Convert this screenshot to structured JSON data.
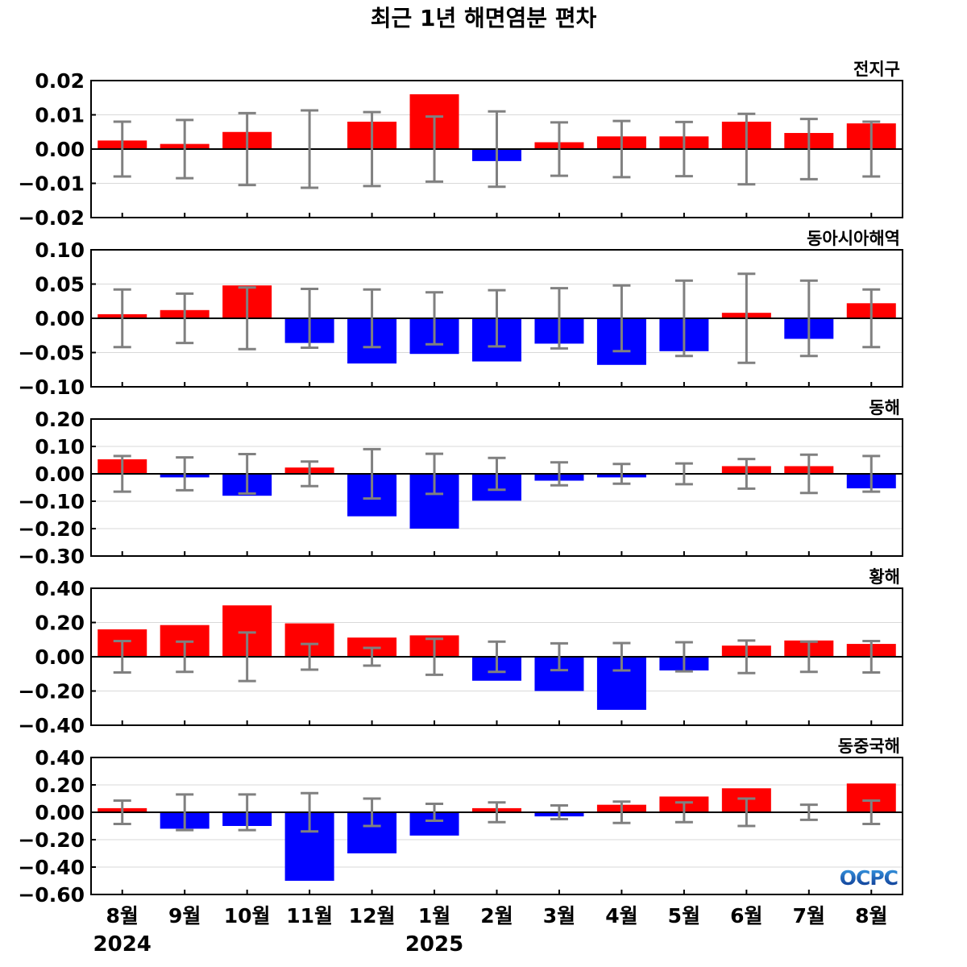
{
  "chart_data": {
    "type": "bar",
    "title": "최근 1년 해면염분 편차",
    "categories": [
      "8월",
      "9월",
      "10월",
      "11월",
      "12월",
      "1월",
      "2월",
      "3월",
      "4월",
      "5월",
      "6월",
      "7월",
      "8월"
    ],
    "year_labels": [
      {
        "label": "2024",
        "category_index": 0
      },
      {
        "label": "2025",
        "category_index": 5
      }
    ],
    "positive_color": "#ff0000",
    "negative_color": "#0000ff",
    "error_bar_color": "#808080",
    "logo": "OCPC",
    "panels": [
      {
        "name": "전지구",
        "ylim": [
          -0.02,
          0.02
        ],
        "yticks": [
          -0.02,
          -0.01,
          0.0,
          0.01,
          0.02
        ],
        "yticklabels": [
          "−0.02",
          "−0.01",
          "0.00",
          "0.01",
          "0.02"
        ],
        "values": [
          0.0025,
          0.0015,
          0.005,
          0.0002,
          0.008,
          0.016,
          -0.0035,
          0.002,
          0.0037,
          0.0037,
          0.008,
          0.0047,
          0.0075
        ],
        "error": [
          0.008,
          0.0085,
          0.0105,
          0.0113,
          0.0108,
          0.0095,
          0.011,
          0.0078,
          0.0082,
          0.0079,
          0.0103,
          0.0088,
          0.008
        ]
      },
      {
        "name": "동아시아해역",
        "ylim": [
          -0.1,
          0.1
        ],
        "yticks": [
          -0.1,
          -0.05,
          0.0,
          0.05,
          0.1
        ],
        "yticklabels": [
          "−0.10",
          "−0.05",
          "0.00",
          "0.05",
          "0.10"
        ],
        "values": [
          0.006,
          0.012,
          0.048,
          -0.036,
          -0.066,
          -0.052,
          -0.063,
          -0.037,
          -0.068,
          -0.048,
          0.008,
          -0.03,
          0.022
        ],
        "error": [
          0.042,
          0.036,
          0.045,
          0.043,
          0.042,
          0.038,
          0.041,
          0.044,
          0.048,
          0.055,
          0.065,
          0.055,
          0.042
        ]
      },
      {
        "name": "동해",
        "ylim": [
          -0.3,
          0.2
        ],
        "yticks": [
          -0.3,
          -0.2,
          -0.1,
          0.0,
          0.1,
          0.2
        ],
        "yticklabels": [
          "−0.30",
          "−0.20",
          "−0.10",
          "0.00",
          "0.10",
          "0.20"
        ],
        "values": [
          0.053,
          -0.013,
          -0.08,
          0.023,
          -0.155,
          -0.2,
          -0.098,
          -0.025,
          -0.013,
          -0.002,
          0.028,
          0.028,
          -0.053
        ],
        "error": [
          0.065,
          0.06,
          0.072,
          0.045,
          0.09,
          0.073,
          0.058,
          0.042,
          0.036,
          0.038,
          0.054,
          0.07,
          0.065
        ]
      },
      {
        "name": "황해",
        "ylim": [
          -0.4,
          0.4
        ],
        "yticks": [
          -0.4,
          -0.2,
          0.0,
          0.2,
          0.4
        ],
        "yticklabels": [
          "−0.40",
          "−0.20",
          "0.00",
          "0.20",
          "0.40"
        ],
        "values": [
          0.16,
          0.185,
          0.3,
          0.195,
          0.112,
          0.125,
          -0.14,
          -0.2,
          -0.31,
          -0.08,
          0.065,
          0.095,
          0.075
        ],
        "error": [
          0.092,
          0.088,
          0.142,
          0.075,
          0.052,
          0.105,
          0.088,
          0.078,
          0.08,
          0.085,
          0.095,
          0.088,
          0.092
        ]
      },
      {
        "name": "동중국해",
        "ylim": [
          -0.6,
          0.4
        ],
        "yticks": [
          -0.6,
          -0.4,
          -0.2,
          0.0,
          0.2,
          0.4
        ],
        "yticklabels": [
          "−0.60",
          "−0.40",
          "−0.20",
          "0.00",
          "0.20",
          "0.40"
        ],
        "values": [
          0.03,
          -0.12,
          -0.1,
          -0.5,
          -0.3,
          -0.17,
          0.03,
          -0.03,
          0.055,
          0.115,
          0.175,
          -0.005,
          0.21
        ],
        "error": [
          0.085,
          0.13,
          0.13,
          0.14,
          0.1,
          0.062,
          0.072,
          0.05,
          0.078,
          0.072,
          0.1,
          0.055,
          0.085
        ]
      }
    ]
  }
}
